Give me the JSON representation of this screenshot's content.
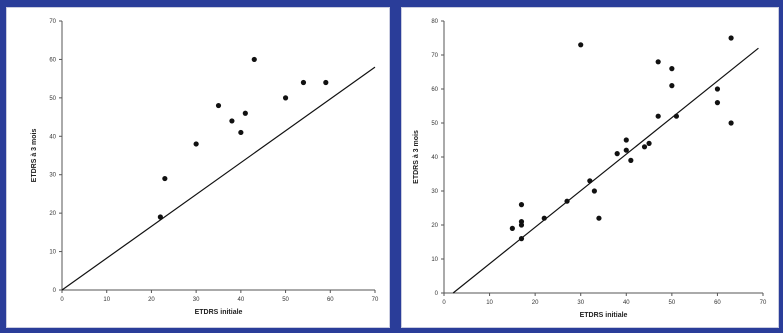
{
  "colors": {
    "background": "#2a3d99",
    "panel": "#ffffff",
    "ink": "#111111"
  },
  "chart_data": [
    {
      "type": "scatter",
      "title": "",
      "xlabel": "ETDRS initiale",
      "ylabel": "ETDRS à 3 mois",
      "xlim": [
        0,
        70
      ],
      "ylim": [
        0,
        70
      ],
      "xticks": [
        "0",
        "10",
        "20",
        "30",
        "40",
        "50",
        "60",
        "70"
      ],
      "yticks": [
        "0",
        "10",
        "20",
        "30",
        "40",
        "50",
        "60",
        "70"
      ],
      "grid": false,
      "series": [
        {
          "points": [
            [
              22,
              19
            ],
            [
              23,
              29
            ],
            [
              30,
              38
            ],
            [
              35,
              48
            ],
            [
              38,
              44
            ],
            [
              40,
              41
            ],
            [
              41,
              46
            ],
            [
              43,
              60
            ],
            [
              50,
              50
            ],
            [
              54,
              54
            ],
            [
              59,
              54
            ]
          ]
        }
      ],
      "trendline": [
        [
          0,
          0
        ],
        [
          70,
          58
        ]
      ]
    },
    {
      "type": "scatter",
      "title": "",
      "xlabel": "ETDRS initiale",
      "ylabel": "ETDRS à 3 mois",
      "xlim": [
        0,
        70
      ],
      "ylim": [
        0,
        80
      ],
      "xticks": [
        "0",
        "10",
        "20",
        "30",
        "40",
        "50",
        "60",
        "70"
      ],
      "yticks": [
        "0",
        "10",
        "20",
        "30",
        "40",
        "50",
        "60",
        "70",
        "80"
      ],
      "grid": false,
      "series": [
        {
          "points": [
            [
              15,
              19
            ],
            [
              17,
              26
            ],
            [
              17,
              21
            ],
            [
              17,
              20
            ],
            [
              17,
              16
            ],
            [
              22,
              22
            ],
            [
              27,
              27
            ],
            [
              30,
              73
            ],
            [
              32,
              33
            ],
            [
              33,
              30
            ],
            [
              34,
              22
            ],
            [
              38,
              41
            ],
            [
              40,
              45
            ],
            [
              40,
              42
            ],
            [
              41,
              39
            ],
            [
              44,
              43
            ],
            [
              45,
              44
            ],
            [
              47,
              52
            ],
            [
              47,
              68
            ],
            [
              50,
              66
            ],
            [
              50,
              61
            ],
            [
              51,
              52
            ],
            [
              60,
              60
            ],
            [
              60,
              56
            ],
            [
              63,
              75
            ],
            [
              63,
              50
            ]
          ]
        }
      ],
      "trendline": [
        [
          2,
          0
        ],
        [
          69,
          72
        ]
      ]
    }
  ]
}
